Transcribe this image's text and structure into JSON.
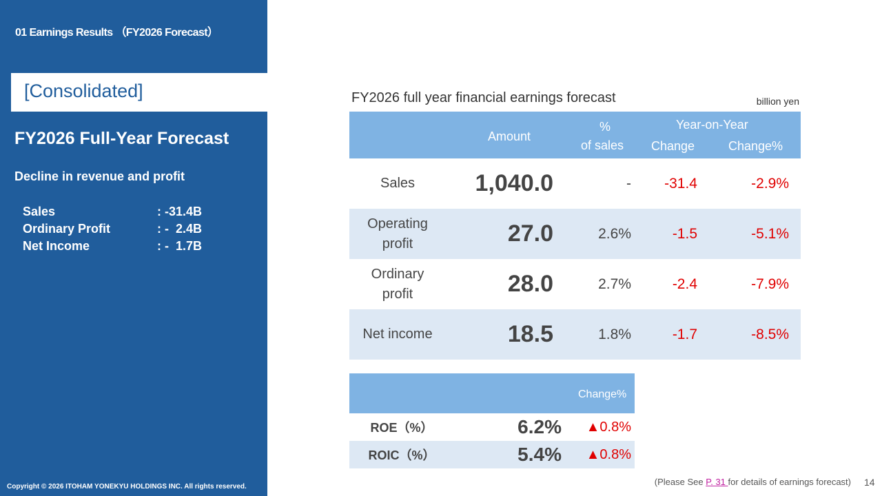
{
  "sidebar": {
    "section": "01 Earnings Results （FY2026 Forecast）",
    "tag": "[Consolidated]",
    "title": "FY2026 Full-Year Forecast",
    "subtitle": "Decline in revenue and profit",
    "summary": [
      {
        "label": "Sales",
        "value": ": -31.4B"
      },
      {
        "label": "Ordinary Profit",
        "value": ": -  2.4B"
      },
      {
        "label": "Net Income",
        "value": ": -  1.7B"
      }
    ],
    "copyright": "Copyright © 2026 ITOHAM YONEKYU HOLDINGS INC. All rights reserved."
  },
  "table": {
    "caption": "FY2026 full year financial earnings forecast",
    "unit": "billion yen",
    "header": {
      "amount": "Amount",
      "pct_sales": [
        "%",
        "of sales"
      ],
      "yoy": "Year-on-Year",
      "change": "Change",
      "change_pct": "Change%"
    },
    "rows": [
      [
        "Sales",
        "1,040.0",
        "-",
        "-31.4",
        "-2.9%"
      ],
      [
        "Operating profit",
        "27.0",
        "2.6%",
        "-1.5",
        "-5.1%"
      ],
      [
        "Ordinary profit",
        "28.0",
        "2.7%",
        "-2.4",
        "-7.9%"
      ],
      [
        "Net income",
        "18.5",
        "1.8%",
        "-1.7",
        "-8.5%"
      ]
    ]
  },
  "ratios": {
    "header": "Change%",
    "rows": [
      [
        "ROE（%）",
        "6.2%",
        "▲0.8%"
      ],
      [
        "ROIC（%）",
        "5.4%",
        "▲0.8%"
      ]
    ]
  },
  "footer": {
    "before": "(Please See ",
    "link": "P. 31 ",
    "after": "for details of earnings forecast)",
    "page": "14"
  }
}
